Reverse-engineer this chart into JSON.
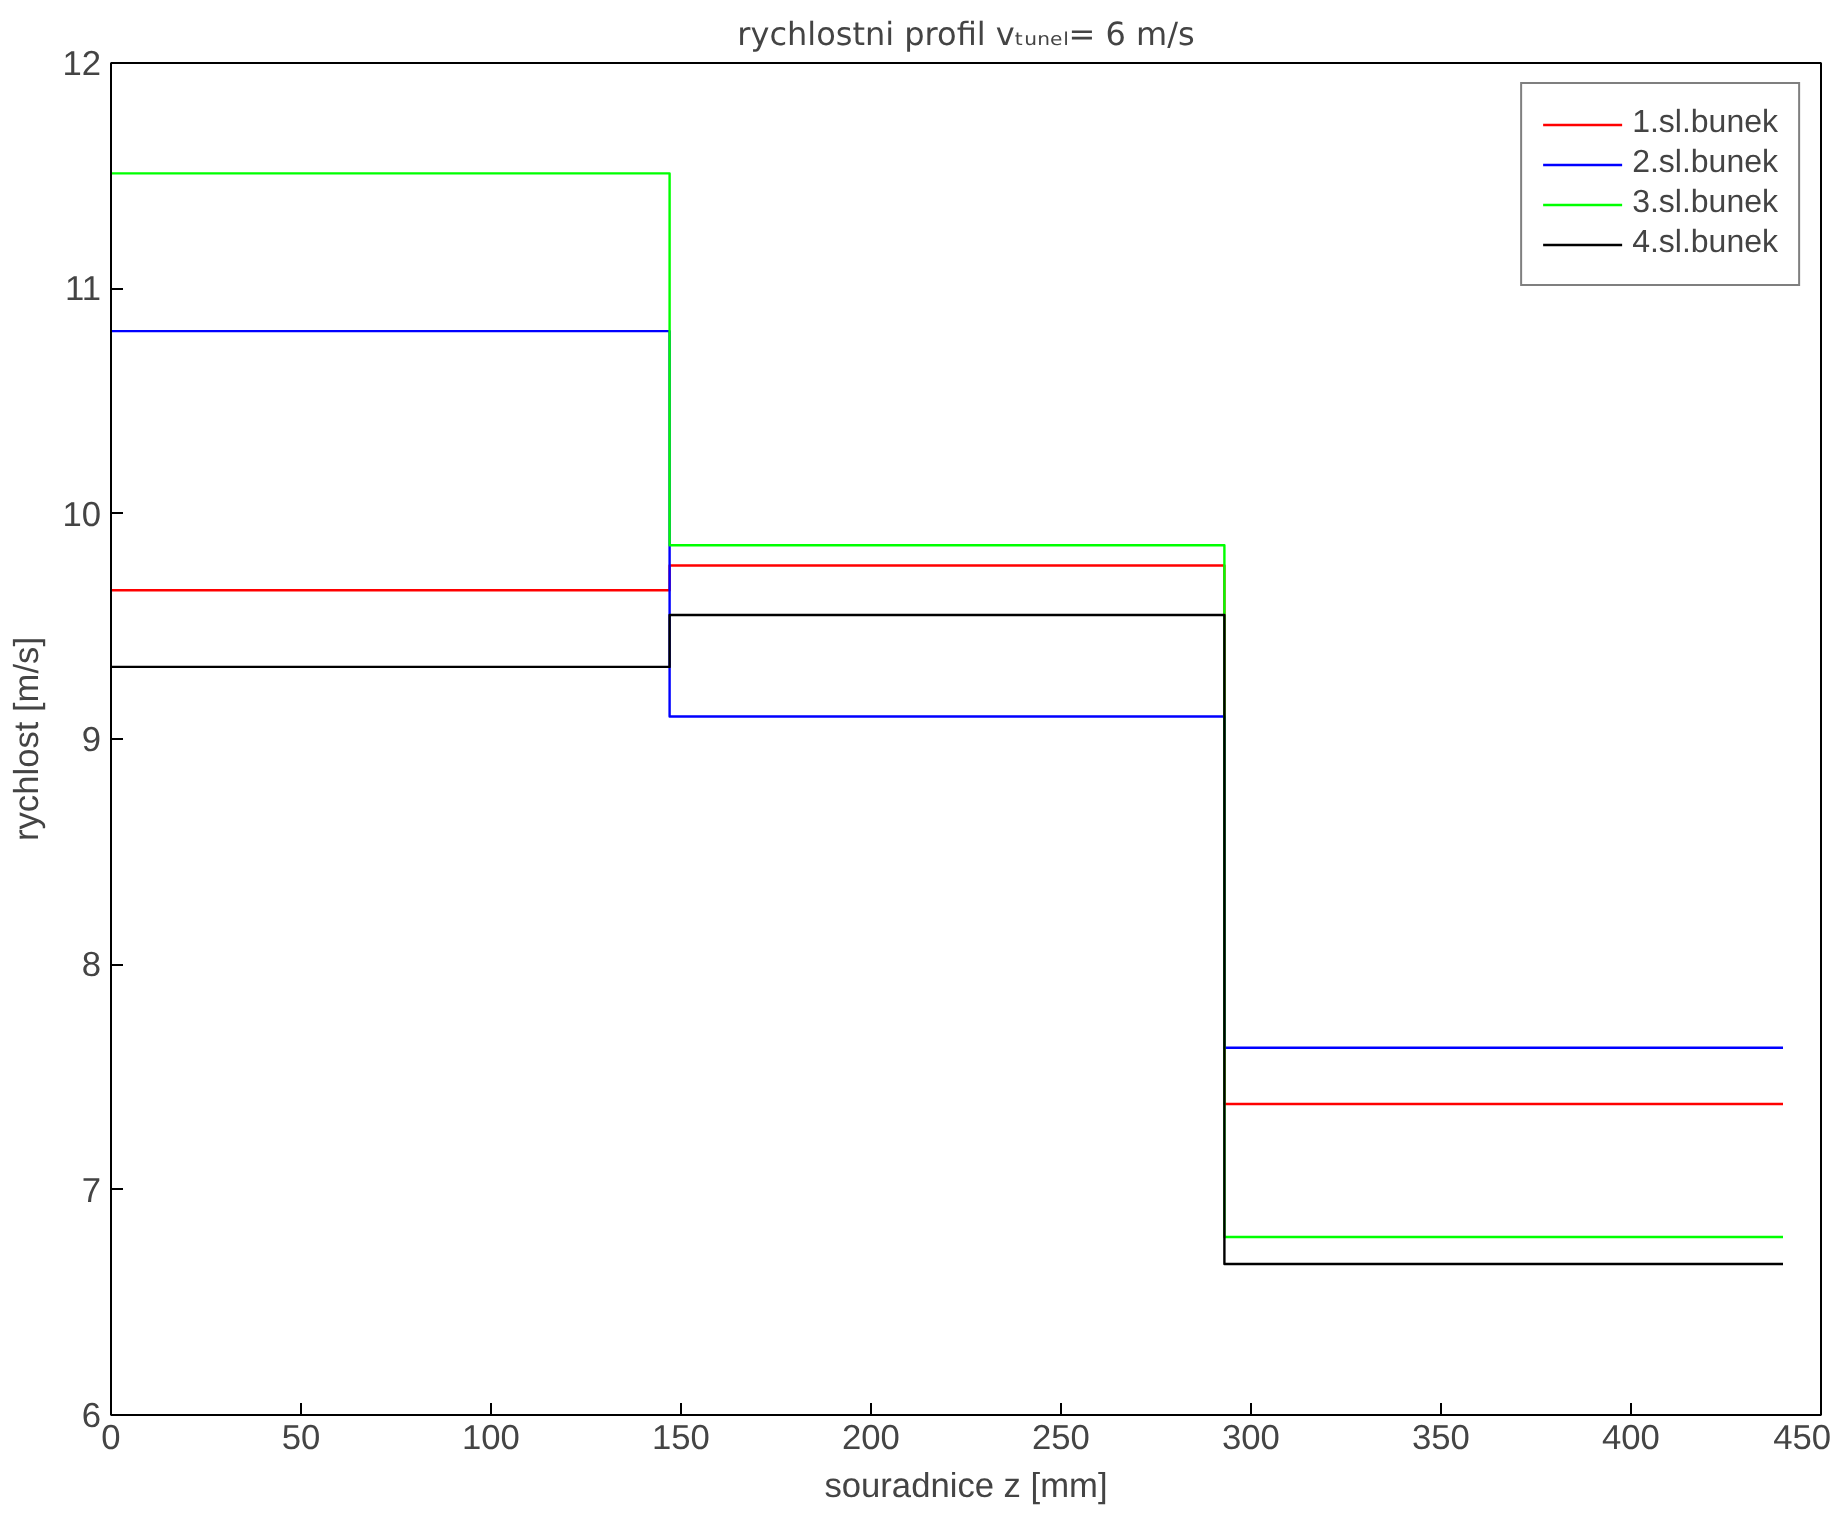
{
  "chart_data": {
    "type": "step",
    "title": "rychlostni profil vₜᵤₙₑₗ= 6 m/s",
    "xlabel": "souradnice z [mm]",
    "ylabel": "rychlost [m/s]",
    "x": [
      0,
      147,
      293,
      440
    ],
    "series": [
      {
        "name": "1.sl.bunek",
        "color": "#ff0000",
        "values": [
          9.66,
          9.77,
          7.38,
          7.38
        ]
      },
      {
        "name": "2.sl.bunek",
        "color": "#0000ff",
        "values": [
          10.81,
          9.1,
          7.63,
          7.63
        ]
      },
      {
        "name": "3.sl.bunek",
        "color": "#00ff00",
        "values": [
          11.51,
          9.86,
          6.79,
          6.79
        ]
      },
      {
        "name": "4.sl.bunek",
        "color": "#000000",
        "values": [
          9.32,
          9.55,
          6.67,
          6.67
        ]
      }
    ],
    "xlim": [
      0,
      450
    ],
    "ylim": [
      6,
      12
    ],
    "xticks": [
      0,
      50,
      100,
      150,
      200,
      250,
      300,
      350,
      400,
      450
    ],
    "yticks": [
      6,
      7,
      8,
      9,
      10,
      11,
      12
    ],
    "grid": false,
    "legend": "top right"
  }
}
